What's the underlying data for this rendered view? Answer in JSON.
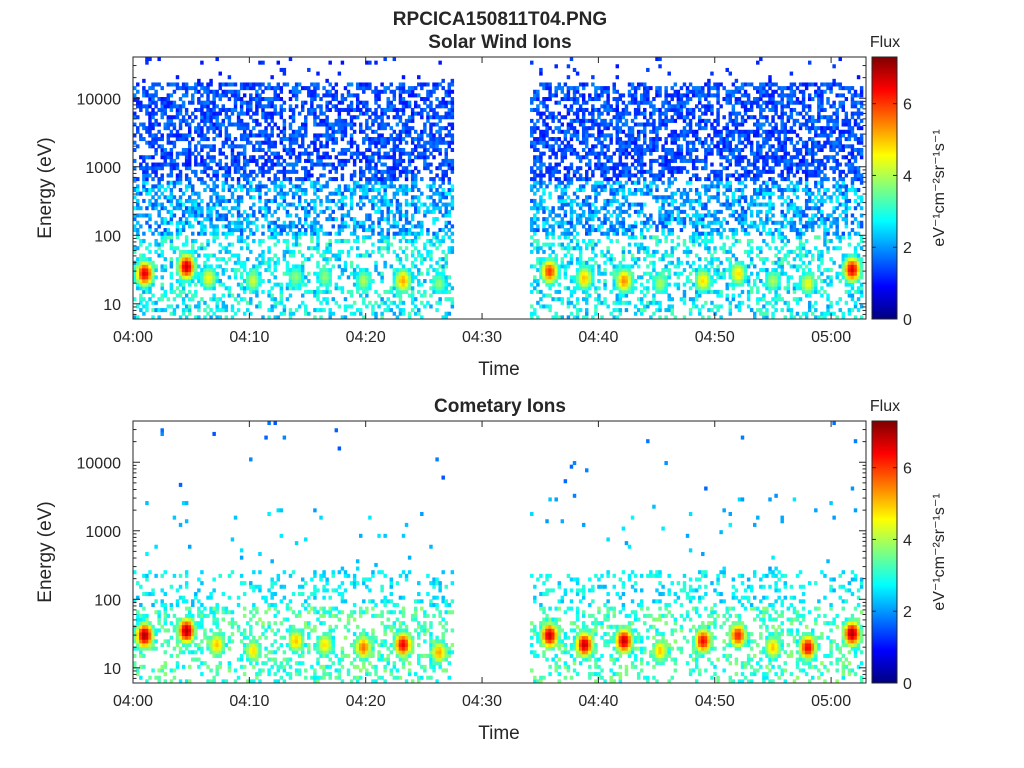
{
  "figure_title": "RPCICA150811T04.PNG",
  "colors": {
    "colormap": [
      "#00007f",
      "#0000ff",
      "#007fff",
      "#00ffff",
      "#7fff7f",
      "#ffff00",
      "#ff7f00",
      "#ff0000",
      "#7f0000"
    ],
    "axis": "#262626",
    "background": "#ffffff"
  },
  "chart_data": [
    {
      "type": "heatmap",
      "id": "solar",
      "title": "Solar Wind Ions",
      "xlabel": "Time",
      "ylabel": "Energy (eV)",
      "x_ticks": [
        "04:00",
        "04:10",
        "04:20",
        "04:30",
        "04:40",
        "04:50",
        "05:00"
      ],
      "y_ticks": [
        "10",
        "100",
        "1000",
        "10000"
      ],
      "y_scale": "log",
      "ylim": [
        6,
        40000
      ],
      "xlim_minutes": [
        0,
        63
      ],
      "data_gap_minutes": [
        27.6,
        34.1
      ],
      "colorbar": {
        "label": "Flux",
        "units": "eV⁻¹cm⁻²sr⁻¹s⁻¹",
        "ticks": [
          "0",
          "2",
          "4",
          "6"
        ],
        "range": [
          0,
          7.3
        ]
      },
      "hotspots": [
        {
          "t": 1.0,
          "e": 28,
          "v": 6.6
        },
        {
          "t": 4.6,
          "e": 35,
          "v": 6.8
        },
        {
          "t": 6.5,
          "e": 24,
          "v": 4.5
        },
        {
          "t": 10.3,
          "e": 22,
          "v": 4.2
        },
        {
          "t": 14.0,
          "e": 25,
          "v": 3.8
        },
        {
          "t": 16.5,
          "e": 25,
          "v": 3.8
        },
        {
          "t": 19.8,
          "e": 22,
          "v": 4.0
        },
        {
          "t": 23.2,
          "e": 22,
          "v": 5.2
        },
        {
          "t": 26.3,
          "e": 20,
          "v": 3.8
        },
        {
          "t": 35.8,
          "e": 30,
          "v": 6.0
        },
        {
          "t": 38.8,
          "e": 24,
          "v": 5.0
        },
        {
          "t": 42.2,
          "e": 22,
          "v": 5.4
        },
        {
          "t": 45.3,
          "e": 20,
          "v": 4.0
        },
        {
          "t": 49.0,
          "e": 22,
          "v": 4.8
        },
        {
          "t": 52.0,
          "e": 28,
          "v": 4.8
        },
        {
          "t": 55.0,
          "e": 22,
          "v": 4.0
        },
        {
          "t": 58.0,
          "e": 20,
          "v": 4.5
        },
        {
          "t": 61.8,
          "e": 32,
          "v": 6.6
        }
      ]
    },
    {
      "type": "heatmap",
      "id": "comet",
      "title": "Cometary Ions",
      "xlabel": "Time",
      "ylabel": "Energy (eV)",
      "x_ticks": [
        "04:00",
        "04:10",
        "04:20",
        "04:30",
        "04:40",
        "04:50",
        "05:00"
      ],
      "y_ticks": [
        "10",
        "100",
        "1000",
        "10000"
      ],
      "y_scale": "log",
      "ylim": [
        6,
        40000
      ],
      "xlim_minutes": [
        0,
        63
      ],
      "data_gap_minutes": [
        27.6,
        34.1
      ],
      "colorbar": {
        "label": "Flux",
        "units": "eV⁻¹cm⁻²sr⁻¹s⁻¹",
        "ticks": [
          "0",
          "2",
          "4",
          "6"
        ],
        "range": [
          0,
          7.3
        ]
      },
      "hotspots": [
        {
          "t": 1.0,
          "e": 30,
          "v": 7.0
        },
        {
          "t": 4.6,
          "e": 35,
          "v": 7.0
        },
        {
          "t": 7.2,
          "e": 22,
          "v": 5.0
        },
        {
          "t": 10.3,
          "e": 18,
          "v": 4.8
        },
        {
          "t": 14.0,
          "e": 25,
          "v": 5.0
        },
        {
          "t": 16.5,
          "e": 22,
          "v": 4.8
        },
        {
          "t": 19.8,
          "e": 20,
          "v": 5.6
        },
        {
          "t": 23.2,
          "e": 22,
          "v": 6.5
        },
        {
          "t": 26.3,
          "e": 17,
          "v": 5.2
        },
        {
          "t": 35.8,
          "e": 30,
          "v": 6.8
        },
        {
          "t": 38.8,
          "e": 22,
          "v": 6.8
        },
        {
          "t": 42.2,
          "e": 25,
          "v": 6.8
        },
        {
          "t": 45.3,
          "e": 18,
          "v": 5.0
        },
        {
          "t": 49.0,
          "e": 25,
          "v": 6.4
        },
        {
          "t": 52.0,
          "e": 30,
          "v": 6.2
        },
        {
          "t": 55.0,
          "e": 20,
          "v": 5.0
        },
        {
          "t": 58.0,
          "e": 20,
          "v": 6.5
        },
        {
          "t": 61.8,
          "e": 32,
          "v": 7.0
        }
      ]
    }
  ]
}
